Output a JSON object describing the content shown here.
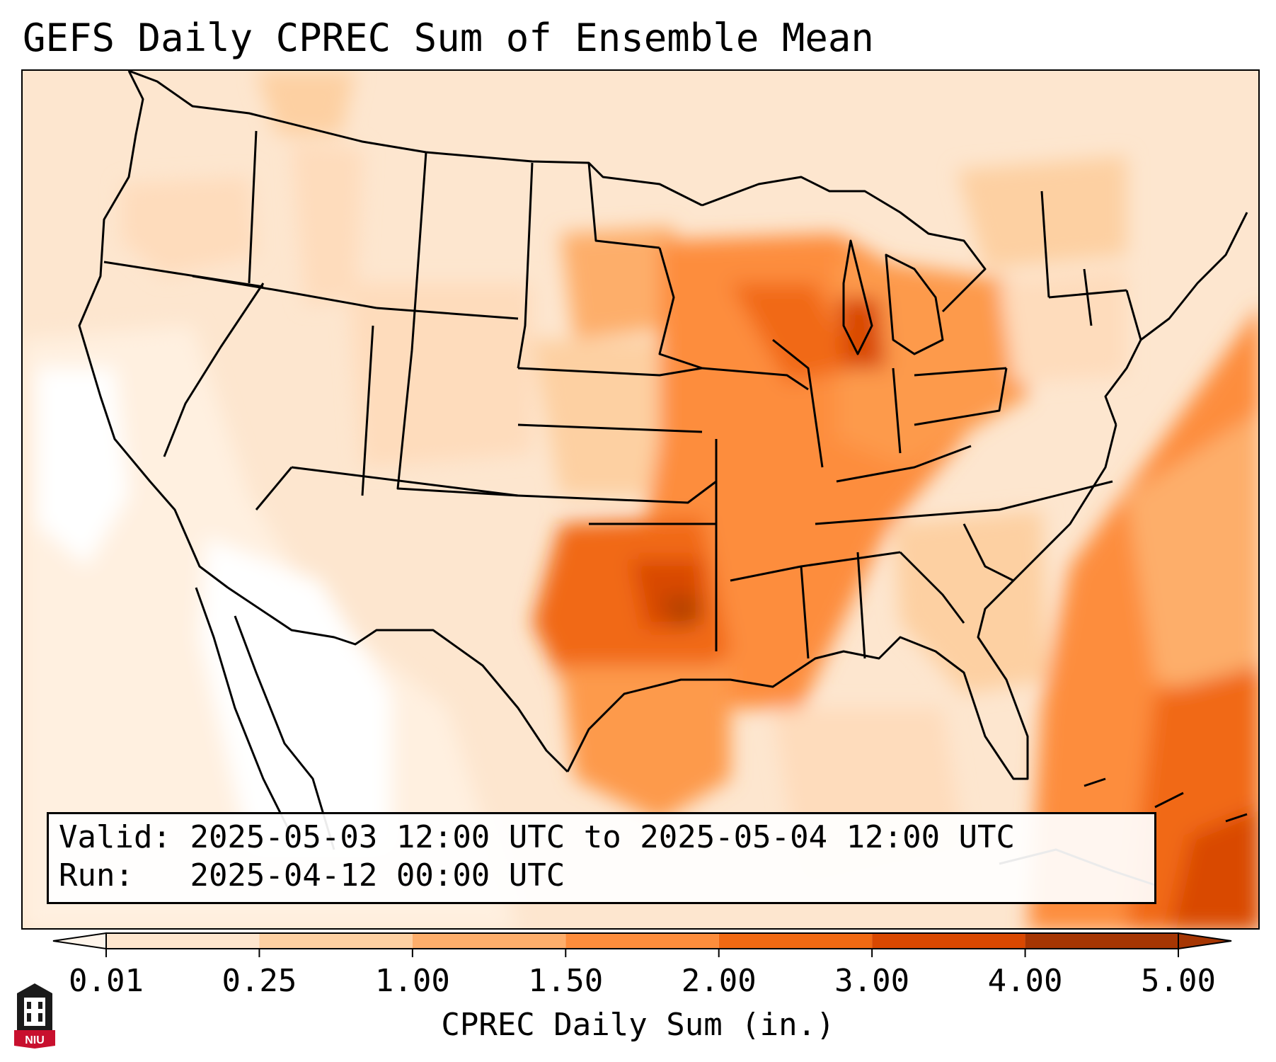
{
  "title": "GEFS Daily CPREC Sum of Ensemble Mean",
  "info": {
    "valid_label": "Valid:",
    "valid_value": "2025-05-03 12:00 UTC to 2025-05-04 12:00 UTC",
    "run_label": "Run:",
    "run_value": "2025-04-12 00:00 UTC"
  },
  "colorbar": {
    "ticks": [
      "0.01",
      "0.25",
      "1.00",
      "1.50",
      "2.00",
      "3.00",
      "4.00",
      "5.00"
    ],
    "colors": [
      "#fff5eb",
      "#fee6ce",
      "#fdd0a2",
      "#fdae6b",
      "#fd8d3c",
      "#f16913",
      "#d94801",
      "#a63603"
    ],
    "label": "CPREC Daily Sum (in.)",
    "extend": "both"
  },
  "map": {
    "projection": "Lambert conformal, CONUS",
    "field": "precipitation shading",
    "maxima": [
      {
        "region": "Oklahoma/Texas Red River",
        "level": "3.00-4.00"
      },
      {
        "region": "Lake Michigan / Wisconsin",
        "level": "3.00-4.00"
      },
      {
        "region": "Western Atlantic / Bahamas",
        "level": "3.00-4.00"
      }
    ]
  },
  "logo": {
    "text": "NIU"
  }
}
